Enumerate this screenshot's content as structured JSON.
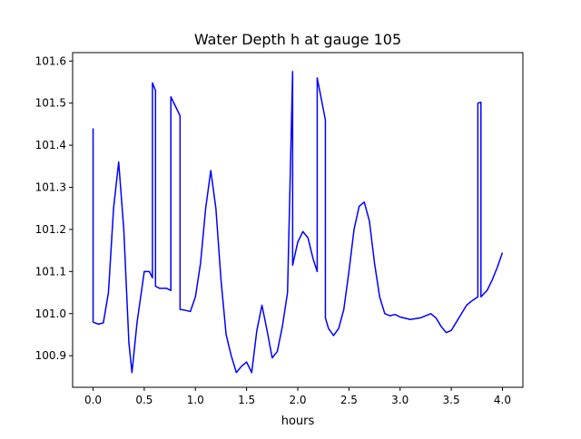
{
  "chart_data": {
    "type": "line",
    "title": "Water Depth h at gauge 105",
    "xlabel": "hours",
    "ylabel": "",
    "xlim": [
      -0.2,
      4.2
    ],
    "ylim": [
      100.825,
      101.62
    ],
    "xticks": [
      0.0,
      0.5,
      1.0,
      1.5,
      2.0,
      2.5,
      3.0,
      3.5,
      4.0
    ],
    "xtick_labels": [
      "0.0",
      "0.5",
      "1.0",
      "1.5",
      "2.0",
      "2.5",
      "3.0",
      "3.5",
      "4.0"
    ],
    "yticks": [
      100.9,
      101.0,
      101.1,
      101.2,
      101.3,
      101.4,
      101.5,
      101.6
    ],
    "ytick_labels": [
      "100.9",
      "101.0",
      "101.1",
      "101.2",
      "101.3",
      "101.4",
      "101.5",
      "101.6"
    ],
    "grid": false,
    "legend": "none",
    "series": [
      {
        "color": "#0000ff",
        "x": [
          0.0,
          0.0,
          0.05,
          0.1,
          0.15,
          0.2,
          0.25,
          0.3,
          0.35,
          0.38,
          0.43,
          0.5,
          0.55,
          0.58,
          0.58,
          0.61,
          0.61,
          0.65,
          0.72,
          0.76,
          0.76,
          0.85,
          0.85,
          0.9,
          0.95,
          1.0,
          1.05,
          1.1,
          1.15,
          1.2,
          1.25,
          1.3,
          1.35,
          1.4,
          1.45,
          1.5,
          1.55,
          1.6,
          1.65,
          1.7,
          1.75,
          1.8,
          1.85,
          1.9,
          1.95,
          1.95,
          2.0,
          2.05,
          2.1,
          2.15,
          2.19,
          2.19,
          2.27,
          2.27,
          2.3,
          2.35,
          2.4,
          2.45,
          2.5,
          2.55,
          2.6,
          2.65,
          2.7,
          2.75,
          2.8,
          2.85,
          2.9,
          2.95,
          3.0,
          3.1,
          3.2,
          3.3,
          3.35,
          3.4,
          3.45,
          3.5,
          3.55,
          3.6,
          3.65,
          3.7,
          3.76,
          3.76,
          3.79,
          3.79,
          3.85,
          3.9,
          3.95,
          4.0
        ],
        "y": [
          101.44,
          100.98,
          100.975,
          100.978,
          101.05,
          101.25,
          101.36,
          101.2,
          100.93,
          100.86,
          100.98,
          101.1,
          101.1,
          101.085,
          101.548,
          101.53,
          101.065,
          101.06,
          101.06,
          101.055,
          101.515,
          101.47,
          101.01,
          101.008,
          101.005,
          101.04,
          101.12,
          101.25,
          101.34,
          101.25,
          101.08,
          100.95,
          100.9,
          100.86,
          100.875,
          100.885,
          100.86,
          100.96,
          101.02,
          100.96,
          100.895,
          100.91,
          100.97,
          101.05,
          101.575,
          101.115,
          101.17,
          101.195,
          101.18,
          101.13,
          101.1,
          101.56,
          101.46,
          100.99,
          100.965,
          100.948,
          100.965,
          101.01,
          101.1,
          101.2,
          101.255,
          101.265,
          101.22,
          101.12,
          101.04,
          101.0,
          100.995,
          100.998,
          100.992,
          100.986,
          100.99,
          101.0,
          100.99,
          100.97,
          100.955,
          100.96,
          100.98,
          101.0,
          101.02,
          101.03,
          101.04,
          101.5,
          101.502,
          101.04,
          101.055,
          101.08,
          101.11,
          101.145
        ]
      }
    ]
  }
}
